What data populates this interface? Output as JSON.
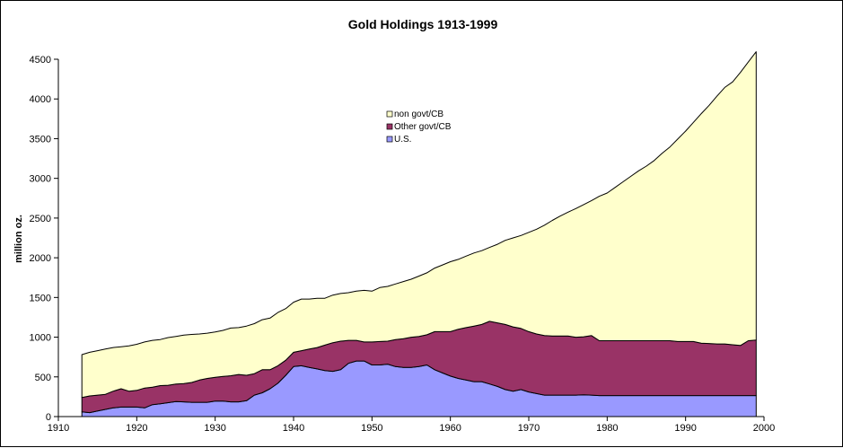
{
  "chart_data": {
    "type": "area",
    "stacked": true,
    "title": "Gold Holdings 1913-1999",
    "xlabel": "",
    "ylabel": "million oz.",
    "xlim": [
      1910,
      2000
    ],
    "ylim": [
      0,
      4500
    ],
    "x_ticks": [
      "1910",
      "1920",
      "1930",
      "1940",
      "1950",
      "1960",
      "1970",
      "1980",
      "1990",
      "2000"
    ],
    "y_ticks": [
      "0",
      "500",
      "1000",
      "1500",
      "2000",
      "2500",
      "3000",
      "3500",
      "4000",
      "4500"
    ],
    "grid": false,
    "legend_position": "top-center",
    "legend": [
      "non govt/CB",
      "Other govt/CB",
      "U.S."
    ],
    "x": [
      1913,
      1914,
      1915,
      1916,
      1917,
      1918,
      1919,
      1920,
      1921,
      1922,
      1923,
      1924,
      1925,
      1926,
      1927,
      1928,
      1929,
      1930,
      1931,
      1932,
      1933,
      1934,
      1935,
      1936,
      1937,
      1938,
      1939,
      1940,
      1941,
      1942,
      1943,
      1944,
      1945,
      1946,
      1947,
      1948,
      1949,
      1950,
      1951,
      1952,
      1953,
      1954,
      1955,
      1956,
      1957,
      1958,
      1959,
      1960,
      1961,
      1962,
      1963,
      1964,
      1965,
      1966,
      1967,
      1968,
      1969,
      1970,
      1971,
      1972,
      1973,
      1974,
      1975,
      1976,
      1977,
      1978,
      1979,
      1980,
      1981,
      1982,
      1983,
      1984,
      1985,
      1986,
      1987,
      1988,
      1989,
      1990,
      1991,
      1992,
      1993,
      1994,
      1995,
      1996,
      1997,
      1998,
      1999
    ],
    "series": [
      {
        "name": "U.S.",
        "color": "#9999ff",
        "values": [
          60,
          50,
          70,
          90,
          110,
          120,
          120,
          120,
          110,
          150,
          160,
          175,
          190,
          185,
          180,
          180,
          180,
          195,
          195,
          185,
          185,
          200,
          270,
          300,
          350,
          420,
          520,
          630,
          640,
          620,
          600,
          580,
          570,
          590,
          670,
          700,
          700,
          650,
          650,
          660,
          630,
          620,
          620,
          630,
          650,
          590,
          550,
          510,
          480,
          460,
          440,
          440,
          410,
          380,
          340,
          320,
          340,
          310,
          290,
          270,
          270,
          270,
          270,
          270,
          275,
          270,
          265,
          265,
          265,
          265,
          265,
          265,
          265,
          265,
          265,
          265,
          265,
          265,
          265,
          265,
          265,
          265,
          265,
          265,
          265,
          265,
          265
        ]
      },
      {
        "name": "Other govt/CB",
        "color": "#993366",
        "values": [
          180,
          210,
          200,
          190,
          210,
          230,
          200,
          210,
          250,
          220,
          230,
          220,
          220,
          230,
          250,
          280,
          300,
          300,
          310,
          330,
          345,
          320,
          270,
          290,
          240,
          220,
          190,
          180,
          190,
          230,
          270,
          320,
          360,
          360,
          290,
          260,
          240,
          290,
          295,
          290,
          340,
          360,
          380,
          380,
          380,
          480,
          520,
          560,
          620,
          660,
          700,
          720,
          790,
          800,
          820,
          810,
          770,
          760,
          750,
          750,
          745,
          745,
          745,
          730,
          730,
          750,
          690,
          690,
          690,
          690,
          690,
          690,
          690,
          690,
          690,
          690,
          680,
          680,
          680,
          660,
          655,
          650,
          650,
          640,
          630,
          690,
          700
        ]
      },
      {
        "name": "non govt/CB",
        "color": "#ffffcc",
        "values": [
          540,
          550,
          560,
          570,
          550,
          530,
          570,
          580,
          580,
          590,
          580,
          600,
          600,
          610,
          605,
          580,
          570,
          570,
          580,
          600,
          590,
          620,
          630,
          630,
          650,
          670,
          650,
          630,
          650,
          630,
          620,
          590,
          600,
          600,
          600,
          620,
          650,
          640,
          680,
          690,
          700,
          720,
          730,
          760,
          780,
          800,
          840,
          880,
          880,
          900,
          920,
          930,
          930,
          990,
          1060,
          1120,
          1170,
          1250,
          1320,
          1390,
          1455,
          1510,
          1560,
          1620,
          1665,
          1700,
          1820,
          1860,
          1930,
          2000,
          2070,
          2140,
          2200,
          2270,
          2360,
          2440,
          2550,
          2650,
          2760,
          2890,
          3000,
          3120,
          3230,
          3310,
          3440,
          3510,
          3630
        ]
      }
    ]
  }
}
